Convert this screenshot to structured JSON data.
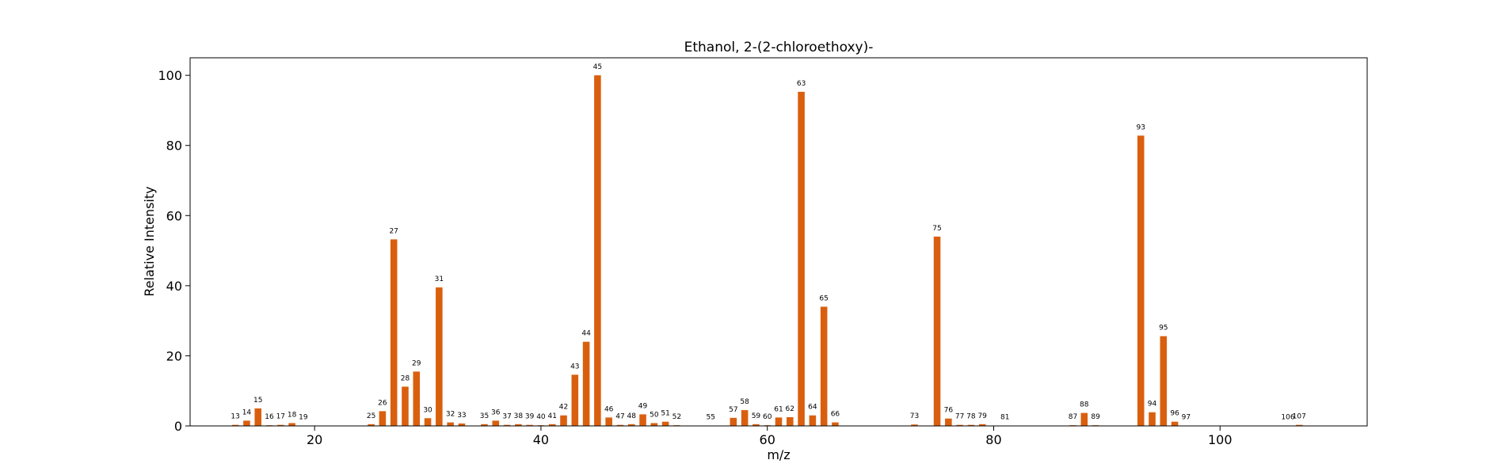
{
  "chart_data": {
    "type": "bar",
    "title": "Ethanol, 2-(2-chloroethoxy)-",
    "xlabel": "m/z",
    "ylabel": "Relative Intensity",
    "xlim": [
      9,
      113
    ],
    "ylim": [
      0,
      105
    ],
    "xticks": [
      20,
      40,
      60,
      80,
      100
    ],
    "yticks": [
      0,
      20,
      40,
      60,
      80,
      100
    ],
    "grid": false,
    "bar_color": "#d95f0e",
    "points": [
      {
        "x": 13,
        "y": 0.3
      },
      {
        "x": 14,
        "y": 1.5
      },
      {
        "x": 15,
        "y": 5.0
      },
      {
        "x": 16,
        "y": 0.2
      },
      {
        "x": 17,
        "y": 0.3
      },
      {
        "x": 18,
        "y": 0.8
      },
      {
        "x": 19,
        "y": 0.1
      },
      {
        "x": 25,
        "y": 0.5
      },
      {
        "x": 26,
        "y": 4.2
      },
      {
        "x": 27,
        "y": 53.2
      },
      {
        "x": 28,
        "y": 11.2
      },
      {
        "x": 29,
        "y": 15.5
      },
      {
        "x": 30,
        "y": 2.2
      },
      {
        "x": 31,
        "y": 39.5
      },
      {
        "x": 32,
        "y": 1.0
      },
      {
        "x": 33,
        "y": 0.7
      },
      {
        "x": 35,
        "y": 0.5
      },
      {
        "x": 36,
        "y": 1.5
      },
      {
        "x": 37,
        "y": 0.3
      },
      {
        "x": 38,
        "y": 0.5
      },
      {
        "x": 39,
        "y": 0.3
      },
      {
        "x": 40,
        "y": 0.2
      },
      {
        "x": 41,
        "y": 0.5
      },
      {
        "x": 42,
        "y": 3.0
      },
      {
        "x": 43,
        "y": 14.6
      },
      {
        "x": 44,
        "y": 24.0
      },
      {
        "x": 45,
        "y": 100
      },
      {
        "x": 46,
        "y": 2.4
      },
      {
        "x": 47,
        "y": 0.3
      },
      {
        "x": 48,
        "y": 0.5
      },
      {
        "x": 49,
        "y": 3.3
      },
      {
        "x": 50,
        "y": 0.8
      },
      {
        "x": 51,
        "y": 1.2
      },
      {
        "x": 52,
        "y": 0.2
      },
      {
        "x": 55,
        "y": 0.1
      },
      {
        "x": 57,
        "y": 2.3
      },
      {
        "x": 58,
        "y": 4.5
      },
      {
        "x": 59,
        "y": 0.5
      },
      {
        "x": 60,
        "y": 0.2
      },
      {
        "x": 61,
        "y": 2.4
      },
      {
        "x": 62,
        "y": 2.5
      },
      {
        "x": 63,
        "y": 95.3
      },
      {
        "x": 64,
        "y": 3.0
      },
      {
        "x": 65,
        "y": 34.0
      },
      {
        "x": 66,
        "y": 1.0
      },
      {
        "x": 73,
        "y": 0.4
      },
      {
        "x": 75,
        "y": 54.0
      },
      {
        "x": 76,
        "y": 2.1
      },
      {
        "x": 77,
        "y": 0.3
      },
      {
        "x": 78,
        "y": 0.3
      },
      {
        "x": 79,
        "y": 0.5
      },
      {
        "x": 81,
        "y": 0.1
      },
      {
        "x": 87,
        "y": 0.2
      },
      {
        "x": 88,
        "y": 3.7
      },
      {
        "x": 89,
        "y": 0.2
      },
      {
        "x": 93,
        "y": 82.8
      },
      {
        "x": 94,
        "y": 3.9
      },
      {
        "x": 95,
        "y": 25.6
      },
      {
        "x": 96,
        "y": 1.2
      },
      {
        "x": 97,
        "y": 0.1
      },
      {
        "x": 106,
        "y": 0.1
      },
      {
        "x": 107,
        "y": 0.3
      }
    ]
  }
}
